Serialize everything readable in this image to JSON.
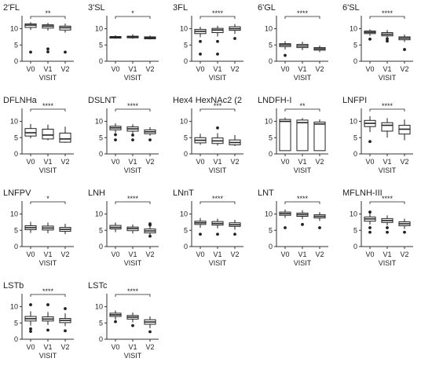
{
  "figure": {
    "x_axis_label": "VISIT",
    "colors": {
      "ink": "#222222",
      "axis": "#333333",
      "box_fill": "#ffffff"
    }
  },
  "chart_data": [
    {
      "type": "box",
      "title": "2'FL",
      "categories": [
        "V0",
        "V1",
        "V2"
      ],
      "ylim": [
        0,
        14
      ],
      "yticks": [
        0,
        5,
        10
      ],
      "xlabel": "VISIT",
      "boxes": [
        {
          "q1": 10.4,
          "median": 11.1,
          "q3": 11.5,
          "whislo": 9.6,
          "whishi": 12,
          "outliers": [
            2.8
          ]
        },
        {
          "q1": 10.2,
          "median": 10.8,
          "q3": 11.2,
          "whislo": 9.4,
          "whishi": 11.8,
          "outliers": [
            3.8,
            2.9
          ]
        },
        {
          "q1": 9.6,
          "median": 10.3,
          "q3": 10.8,
          "whislo": 8.8,
          "whishi": 11.6,
          "outliers": [
            2.8
          ]
        }
      ],
      "significance": {
        "label": "**",
        "from": 0,
        "to": 2
      }
    },
    {
      "type": "box",
      "title": "3'SL",
      "categories": [
        "V0",
        "V1",
        "V2"
      ],
      "ylim": [
        0,
        14
      ],
      "yticks": [
        0,
        5,
        10
      ],
      "xlabel": "VISIT",
      "boxes": [
        {
          "q1": 7.1,
          "median": 7.4,
          "q3": 7.6,
          "whislo": 6.9,
          "whishi": 8,
          "outliers": []
        },
        {
          "q1": 7.2,
          "median": 7.5,
          "q3": 7.7,
          "whislo": 6.9,
          "whishi": 8.3,
          "outliers": []
        },
        {
          "q1": 6.9,
          "median": 7.2,
          "q3": 7.5,
          "whislo": 6.7,
          "whishi": 7.9,
          "outliers": []
        }
      ],
      "significance": {
        "label": "*",
        "from": 0,
        "to": 2
      }
    },
    {
      "type": "box",
      "title": "3FL",
      "categories": [
        "V0",
        "V1",
        "V2"
      ],
      "ylim": [
        0,
        14
      ],
      "yticks": [
        0,
        5,
        10
      ],
      "xlabel": "VISIT",
      "boxes": [
        {
          "q1": 8.5,
          "median": 9.2,
          "q3": 9.8,
          "whislo": 7.4,
          "whishi": 10.6,
          "outliers": [
            6.1,
            2.2
          ]
        },
        {
          "q1": 8.8,
          "median": 9.6,
          "q3": 10.1,
          "whislo": 7.6,
          "whishi": 10.9,
          "outliers": [
            6.1,
            2.2
          ]
        },
        {
          "q1": 9.5,
          "median": 10,
          "q3": 10.6,
          "whislo": 8.4,
          "whishi": 11.4,
          "outliers": [
            7
          ]
        }
      ],
      "significance": {
        "label": "****",
        "from": 0,
        "to": 2
      }
    },
    {
      "type": "box",
      "title": "6'GL",
      "categories": [
        "V0",
        "V1",
        "V2"
      ],
      "ylim": [
        0,
        14
      ],
      "yticks": [
        0,
        5,
        10
      ],
      "xlabel": "VISIT",
      "boxes": [
        {
          "q1": 4.5,
          "median": 5,
          "q3": 5.4,
          "whislo": 3.6,
          "whishi": 6.2,
          "outliers": [
            1.8
          ]
        },
        {
          "q1": 4.2,
          "median": 4.7,
          "q3": 5.2,
          "whislo": 3.4,
          "whishi": 6,
          "outliers": []
        },
        {
          "q1": 3.4,
          "median": 3.8,
          "q3": 4.2,
          "whislo": 2.8,
          "whishi": 4.8,
          "outliers": []
        }
      ],
      "significance": {
        "label": "****",
        "from": 0,
        "to": 2
      }
    },
    {
      "type": "box",
      "title": "6'SL",
      "categories": [
        "V0",
        "V1",
        "V2"
      ],
      "ylim": [
        0,
        14
      ],
      "yticks": [
        0,
        5,
        10
      ],
      "xlabel": "VISIT",
      "boxes": [
        {
          "q1": 8.5,
          "median": 8.9,
          "q3": 9.3,
          "whislo": 7.8,
          "whishi": 9.8,
          "outliers": [
            6.8
          ]
        },
        {
          "q1": 7.8,
          "median": 8.3,
          "q3": 8.8,
          "whislo": 7.2,
          "whishi": 9.6,
          "outliers": [
            6.2,
            6.9
          ]
        },
        {
          "q1": 6.6,
          "median": 7.1,
          "q3": 7.5,
          "whislo": 5.9,
          "whishi": 8.2,
          "outliers": [
            3.6
          ]
        }
      ],
      "significance": {
        "label": "****",
        "from": 0,
        "to": 2
      }
    },
    {
      "type": "box",
      "title": "DFLNHa",
      "categories": [
        "V0",
        "V1",
        "V2"
      ],
      "ylim": [
        0,
        14
      ],
      "yticks": [
        0,
        5,
        10
      ],
      "xlabel": "VISIT",
      "boxes": [
        {
          "q1": 5.5,
          "median": 6.5,
          "q3": 7.8,
          "whislo": 4.8,
          "whishi": 9.2,
          "outliers": []
        },
        {
          "q1": 4.6,
          "median": 5.8,
          "q3": 7.6,
          "whislo": 4.2,
          "whishi": 9,
          "outliers": []
        },
        {
          "q1": 3.6,
          "median": 4.6,
          "q3": 6.4,
          "whislo": 3.4,
          "whishi": 8.4,
          "outliers": []
        }
      ],
      "significance": {
        "label": "****",
        "from": 0,
        "to": 2
      }
    },
    {
      "type": "box",
      "title": "DSLNT",
      "categories": [
        "V0",
        "V1",
        "V2"
      ],
      "ylim": [
        0,
        14
      ],
      "yticks": [
        0,
        5,
        10
      ],
      "xlabel": "VISIT",
      "boxes": [
        {
          "q1": 7.4,
          "median": 8,
          "q3": 8.5,
          "whislo": 6.5,
          "whishi": 9.4,
          "outliers": [
            5.9,
            4.3
          ]
        },
        {
          "q1": 7,
          "median": 7.7,
          "q3": 8.3,
          "whislo": 6.3,
          "whishi": 9.1,
          "outliers": [
            5.8,
            4.3
          ]
        },
        {
          "q1": 6.2,
          "median": 6.8,
          "q3": 7.4,
          "whislo": 5.6,
          "whishi": 8.2,
          "outliers": [
            4.3
          ]
        }
      ],
      "significance": {
        "label": "****",
        "from": 0,
        "to": 2
      }
    },
    {
      "type": "box",
      "title": "Hex4 HexNAc2 (2",
      "categories": [
        "V0",
        "V1",
        "V2"
      ],
      "ylim": [
        0,
        14
      ],
      "yticks": [
        0,
        5,
        10
      ],
      "xlabel": "VISIT",
      "boxes": [
        {
          "q1": 3.4,
          "median": 4.2,
          "q3": 5,
          "whislo": 2.8,
          "whishi": 6.2,
          "outliers": []
        },
        {
          "q1": 3.2,
          "median": 4,
          "q3": 4.9,
          "whislo": 2.6,
          "whishi": 6.4,
          "outliers": [
            8
          ]
        },
        {
          "q1": 2.8,
          "median": 3.5,
          "q3": 4.3,
          "whislo": 2.4,
          "whishi": 5.8,
          "outliers": []
        }
      ],
      "significance": {
        "label": "***",
        "from": 0,
        "to": 2
      }
    },
    {
      "type": "box",
      "title": "LNDFH-I",
      "categories": [
        "V0",
        "V1",
        "V2"
      ],
      "ylim": [
        0,
        14
      ],
      "yticks": [
        0,
        5,
        10
      ],
      "xlabel": "VISIT",
      "boxes": [
        {
          "q1": 1,
          "median": 10,
          "q3": 10.6,
          "whislo": 1,
          "whishi": 11.2,
          "outliers": []
        },
        {
          "q1": 1,
          "median": 9.6,
          "q3": 10.4,
          "whislo": 1,
          "whishi": 11,
          "outliers": []
        },
        {
          "q1": 1,
          "median": 9.2,
          "q3": 9.8,
          "whislo": 1,
          "whishi": 10.6,
          "outliers": []
        }
      ],
      "significance": {
        "label": "**",
        "from": 0,
        "to": 2
      }
    },
    {
      "type": "box",
      "title": "LNFPI",
      "categories": [
        "V0",
        "V1",
        "V2"
      ],
      "ylim": [
        0,
        14
      ],
      "yticks": [
        0,
        5,
        10
      ],
      "xlabel": "VISIT",
      "boxes": [
        {
          "q1": 8.4,
          "median": 9.4,
          "q3": 10.3,
          "whislo": 6.7,
          "whishi": 11.6,
          "outliers": [
            3.8
          ]
        },
        {
          "q1": 7,
          "median": 8.8,
          "q3": 9.6,
          "whislo": 5,
          "whishi": 11,
          "outliers": []
        },
        {
          "q1": 6.1,
          "median": 7.6,
          "q3": 8.8,
          "whislo": 4.2,
          "whishi": 10.6,
          "outliers": []
        }
      ],
      "significance": {
        "label": "****",
        "from": 0,
        "to": 2
      }
    },
    {
      "type": "box",
      "title": "LNFPV",
      "categories": [
        "V0",
        "V1",
        "V2"
      ],
      "ylim": [
        0,
        14
      ],
      "yticks": [
        0,
        5,
        10
      ],
      "xlabel": "VISIT",
      "boxes": [
        {
          "q1": 5.2,
          "median": 5.8,
          "q3": 6.4,
          "whislo": 4.2,
          "whishi": 7.6,
          "outliers": []
        },
        {
          "q1": 5.1,
          "median": 5.7,
          "q3": 6.3,
          "whislo": 4.1,
          "whishi": 7.4,
          "outliers": []
        },
        {
          "q1": 4.7,
          "median": 5.3,
          "q3": 5.9,
          "whislo": 3.8,
          "whishi": 7,
          "outliers": []
        }
      ],
      "significance": {
        "label": "*",
        "from": 0,
        "to": 2
      }
    },
    {
      "type": "box",
      "title": "LNH",
      "categories": [
        "V0",
        "V1",
        "V2"
      ],
      "ylim": [
        0,
        14
      ],
      "yticks": [
        0,
        5,
        10
      ],
      "xlabel": "VISIT",
      "boxes": [
        {
          "q1": 5.4,
          "median": 5.9,
          "q3": 6.5,
          "whislo": 4.4,
          "whishi": 7.4,
          "outliers": []
        },
        {
          "q1": 4.9,
          "median": 5.5,
          "q3": 6,
          "whislo": 4,
          "whishi": 6.8,
          "outliers": []
        },
        {
          "q1": 4.2,
          "median": 4.8,
          "q3": 5.4,
          "whislo": 3.4,
          "whishi": 6.4,
          "outliers": [
            7,
            6.6,
            3.2
          ]
        }
      ],
      "significance": {
        "label": "****",
        "from": 0,
        "to": 2
      }
    },
    {
      "type": "box",
      "title": "LNnT",
      "categories": [
        "V0",
        "V1",
        "V2"
      ],
      "ylim": [
        0,
        14
      ],
      "yticks": [
        0,
        5,
        10
      ],
      "xlabel": "VISIT",
      "boxes": [
        {
          "q1": 6.8,
          "median": 7.3,
          "q3": 7.8,
          "whislo": 5.8,
          "whishi": 8.8,
          "outliers": [
            3.8
          ]
        },
        {
          "q1": 6.6,
          "median": 7.1,
          "q3": 7.7,
          "whislo": 5.6,
          "whishi": 8.6,
          "outliers": [
            3.8
          ]
        },
        {
          "q1": 6.2,
          "median": 6.7,
          "q3": 7.3,
          "whislo": 5.2,
          "whishi": 8.2,
          "outliers": [
            3.8
          ]
        }
      ],
      "significance": {
        "label": "****",
        "from": 0,
        "to": 2
      }
    },
    {
      "type": "box",
      "title": "LNT",
      "categories": [
        "V0",
        "V1",
        "V2"
      ],
      "ylim": [
        0,
        14
      ],
      "yticks": [
        0,
        5,
        10
      ],
      "xlabel": "VISIT",
      "boxes": [
        {
          "q1": 9.6,
          "median": 10.1,
          "q3": 10.6,
          "whislo": 8.8,
          "whishi": 11.4,
          "outliers": [
            5.8
          ]
        },
        {
          "q1": 9.3,
          "median": 9.8,
          "q3": 10.3,
          "whislo": 8.4,
          "whishi": 11.2,
          "outliers": [
            6.8
          ]
        },
        {
          "q1": 8.8,
          "median": 9.3,
          "q3": 9.8,
          "whislo": 7.9,
          "whishi": 10.6,
          "outliers": [
            5.8
          ]
        }
      ],
      "significance": {
        "label": "****",
        "from": 0,
        "to": 2
      }
    },
    {
      "type": "box",
      "title": "MFLNH-III",
      "categories": [
        "V0",
        "V1",
        "V2"
      ],
      "ylim": [
        0,
        14
      ],
      "yticks": [
        0,
        5,
        10
      ],
      "xlabel": "VISIT",
      "boxes": [
        {
          "q1": 7.8,
          "median": 8.5,
          "q3": 9.1,
          "whislo": 6.8,
          "whishi": 10.2,
          "outliers": [
            10.6,
            5.8,
            4.4
          ]
        },
        {
          "q1": 7.4,
          "median": 8,
          "q3": 8.6,
          "whislo": 6.5,
          "whishi": 9.6,
          "outliers": [
            5.8,
            4.4
          ]
        },
        {
          "q1": 6.4,
          "median": 7,
          "q3": 7.6,
          "whislo": 5.4,
          "whishi": 8.6,
          "outliers": [
            4.4
          ]
        }
      ],
      "significance": {
        "label": "****",
        "from": 0,
        "to": 2
      }
    },
    {
      "type": "box",
      "title": "LSTb",
      "categories": [
        "V0",
        "V1",
        "V2"
      ],
      "ylim": [
        0,
        14
      ],
      "yticks": [
        0,
        5,
        10
      ],
      "xlabel": "VISIT",
      "boxes": [
        {
          "q1": 5.6,
          "median": 6.3,
          "q3": 7,
          "whislo": 4.2,
          "whishi": 8.6,
          "outliers": [
            10.6,
            3.2,
            2.4
          ]
        },
        {
          "q1": 5.6,
          "median": 6.2,
          "q3": 6.9,
          "whislo": 4.4,
          "whishi": 8.4,
          "outliers": [
            10.6,
            2.8
          ]
        },
        {
          "q1": 5.1,
          "median": 5.8,
          "q3": 6.4,
          "whislo": 4,
          "whishi": 8,
          "outliers": [
            9.4,
            2.6
          ]
        }
      ],
      "significance": {
        "label": "****",
        "from": 0,
        "to": 2
      }
    },
    {
      "type": "box",
      "title": "LSTc",
      "categories": [
        "V0",
        "V1",
        "V2"
      ],
      "ylim": [
        0,
        14
      ],
      "yticks": [
        0,
        5,
        10
      ],
      "xlabel": "VISIT",
      "boxes": [
        {
          "q1": 7,
          "median": 7.5,
          "q3": 8,
          "whislo": 6,
          "whishi": 8.8,
          "outliers": [
            5.4
          ]
        },
        {
          "q1": 6.2,
          "median": 6.8,
          "q3": 7.3,
          "whislo": 5.2,
          "whishi": 8.2,
          "outliers": [
            4.2
          ]
        },
        {
          "q1": 4.6,
          "median": 5.3,
          "q3": 6,
          "whislo": 3.4,
          "whishi": 7,
          "outliers": [
            2.3
          ]
        }
      ],
      "significance": {
        "label": "****",
        "from": 0,
        "to": 2
      }
    }
  ]
}
